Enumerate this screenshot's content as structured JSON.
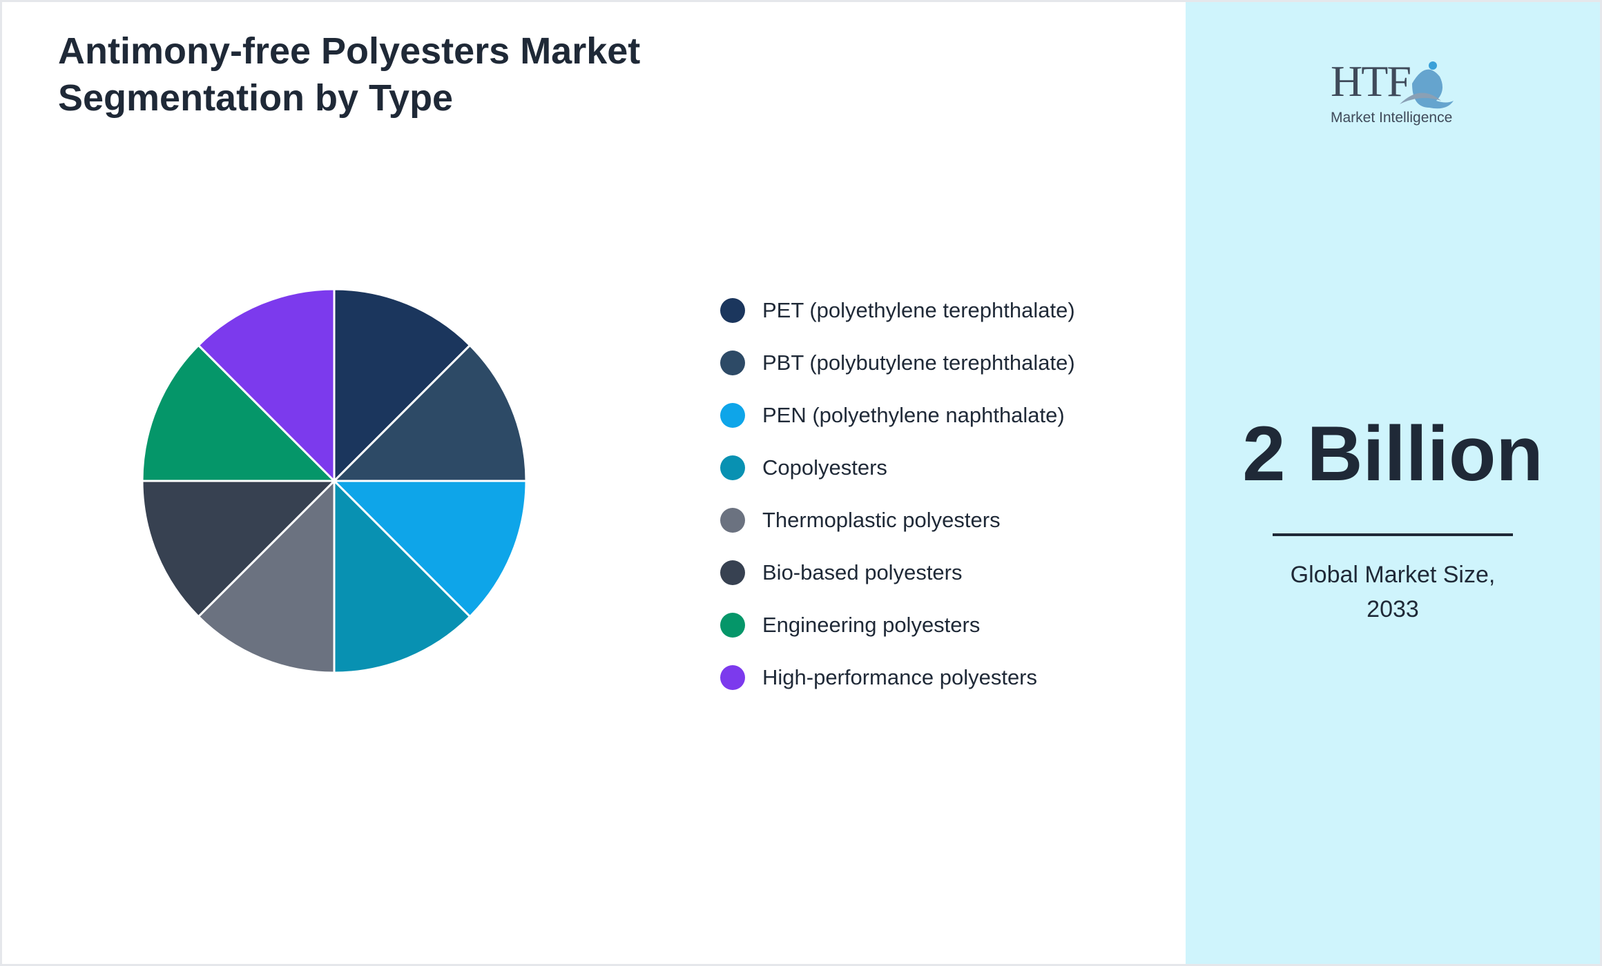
{
  "chart_data": {
    "type": "pie",
    "title": "Antimony-free Polyesters Market Segmentation by Type",
    "categories": [
      "PET (polyethylene terephthalate)",
      "PBT (polybutylene terephthalate)",
      "PEN (polyethylene naphthalate)",
      "Copolyesters",
      "Thermoplastic polyesters",
      "Bio-based polyesters",
      "Engineering polyesters",
      "High-performance polyesters"
    ],
    "values": [
      12.5,
      12.5,
      12.5,
      12.5,
      12.5,
      12.5,
      12.5,
      12.5
    ],
    "colors": [
      "#1b365d",
      "#2d4a66",
      "#0ea5e9",
      "#0891b2",
      "#6b7280",
      "#374151",
      "#059669",
      "#7c3aed"
    ],
    "legend": "right"
  },
  "panel": {
    "logo": {
      "name": "HTF",
      "tagline": "Market Intelligence"
    },
    "value": "2 Billion",
    "caption": "Global Market Size, 2033"
  }
}
